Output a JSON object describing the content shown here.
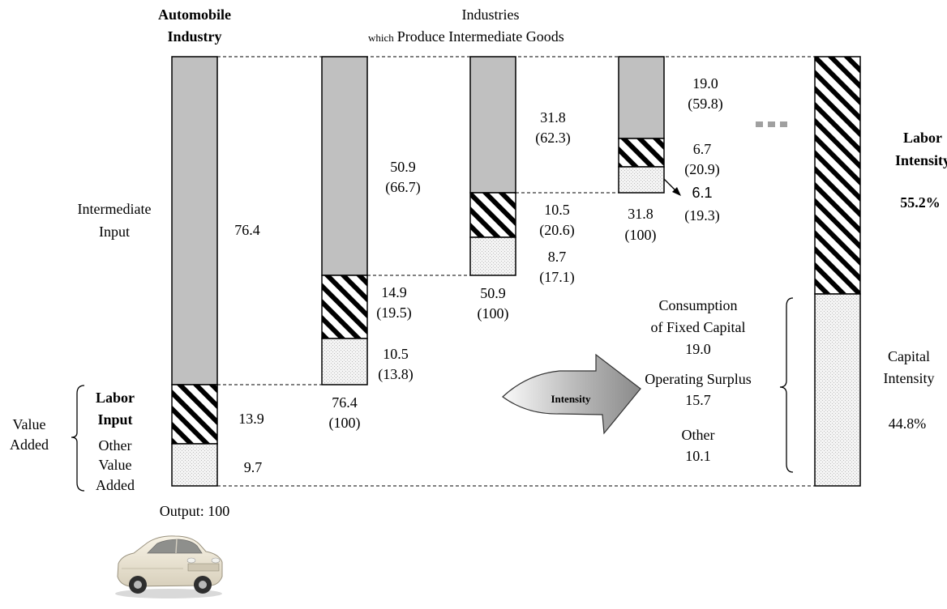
{
  "header": {
    "auto_title_1": "Automobile",
    "auto_title_2": "Industry",
    "ind_title_1": "Industries",
    "ind_title_2_small": "which",
    "ind_title_2_rest": "Produce Intermediate Goods"
  },
  "auto": {
    "intermediate_label_1": "Intermediate",
    "intermediate_label_2": "Input",
    "intermediate_value": "76.4",
    "labor_label_1": "Labor",
    "labor_label_2": "Input",
    "labor_value": "13.9",
    "other_label_1": "Other",
    "other_label_2": "Value",
    "other_label_3": "Added",
    "other_value": "9.7",
    "value_added_1": "Value",
    "value_added_2": "Added",
    "output": "Output: 100"
  },
  "stage1": {
    "inter_val": "50.9",
    "inter_pct": "(66.7)",
    "labor_val": "14.9",
    "labor_pct": "(19.5)",
    "other_val": "10.5",
    "other_pct": "(13.8)",
    "total_val": "76.4",
    "total_pct": "(100)"
  },
  "stage2": {
    "inter_val": "31.8",
    "inter_pct": "(62.3)",
    "labor_val": "10.5",
    "labor_pct": "(20.6)",
    "other_val": "8.7",
    "other_pct": "(17.1)",
    "total_val": "50.9",
    "total_pct": "(100)"
  },
  "stage3": {
    "inter_val": "19.0",
    "inter_pct": "(59.8)",
    "labor_val": "6.7",
    "labor_pct": "(20.9)",
    "other_val": "6.1",
    "other_pct": "(19.3)",
    "total_val": "31.8",
    "total_pct": "(100)"
  },
  "arrow_label": "Intensity",
  "capital_breakdown": {
    "consumption_1": "Consumption",
    "consumption_2": "of Fixed Capital",
    "consumption_val": "19.0",
    "operating_1": "Operating Surplus",
    "operating_val": "15.7",
    "other_1": "Other",
    "other_val": "10.1"
  },
  "intensity": {
    "labor_1": "Labor",
    "labor_2": "Intensity",
    "labor_pct": "55.2%",
    "capital_1": "Capital",
    "capital_2": "Intensity",
    "capital_pct": "44.8%"
  },
  "car_image": "sedan-car-photo"
}
